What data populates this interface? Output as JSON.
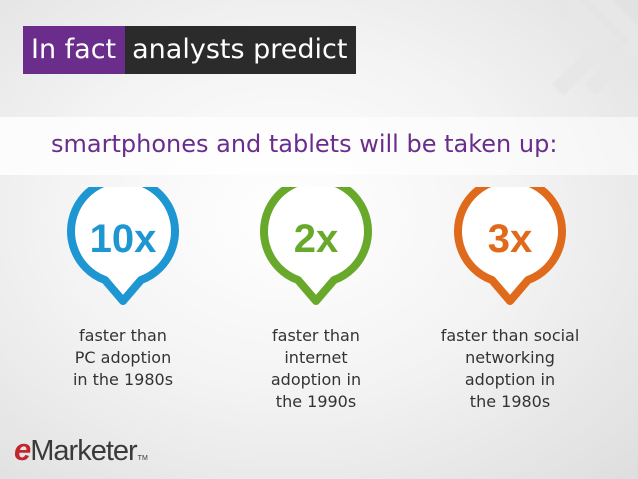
{
  "title": {
    "part1": "In fact",
    "part2": "analysts predict"
  },
  "subtitle": "smartphones and tablets will be taken up:",
  "stats": [
    {
      "value": "10x",
      "color": "#1e96d2",
      "description": [
        "faster than",
        "PC adoption",
        "in the 1980s"
      ]
    },
    {
      "value": "2x",
      "color": "#68a82b",
      "description": [
        "faster than",
        "internet",
        "adoption in",
        "the 1990s"
      ]
    },
    {
      "value": "3x",
      "color": "#e06a1c",
      "description": [
        "faster than social",
        "networking",
        "adoption in",
        "the 1980s"
      ]
    }
  ],
  "logo": {
    "accent": "e",
    "rest": "Marketer",
    "tm": "TM"
  },
  "colors": {
    "title_purple": "#6b2d8c",
    "title_dark": "#2b2b2b",
    "subtitle_purple": "#6b2d8c"
  },
  "decorations": {
    "corner_icon": "double-chevron-right-icon"
  }
}
